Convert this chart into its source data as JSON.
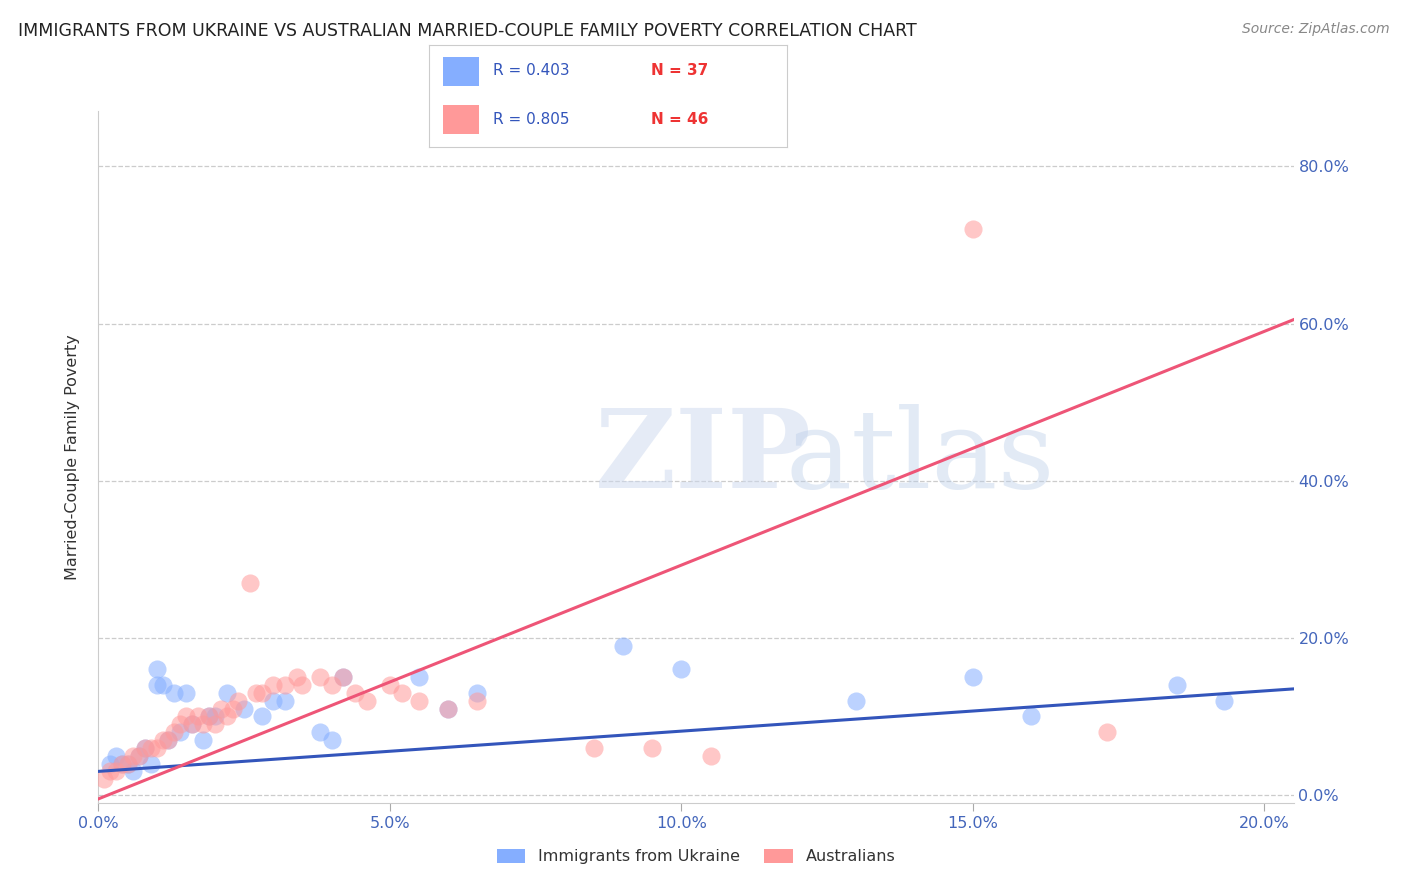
{
  "title": "IMMIGRANTS FROM UKRAINE VS AUSTRALIAN MARRIED-COUPLE FAMILY POVERTY CORRELATION CHART",
  "source": "Source: ZipAtlas.com",
  "ylabel": "Married-Couple Family Poverty",
  "xlim": [
    0.0,
    0.205
  ],
  "ylim": [
    -0.01,
    0.87
  ],
  "xticks": [
    0.0,
    0.05,
    0.1,
    0.15,
    0.2
  ],
  "xtick_labels": [
    "0.0%",
    "5.0%",
    "10.0%",
    "15.0%",
    "20.0%"
  ],
  "yticks": [
    0.0,
    0.2,
    0.4,
    0.6,
    0.8
  ],
  "ytick_labels": [
    "0.0%",
    "20.0%",
    "40.0%",
    "60.0%",
    "80.0%"
  ],
  "legend_r1": "R = 0.403",
  "legend_n1": "N = 37",
  "legend_r2": "R = 0.805",
  "legend_n2": "N = 46",
  "color_blue": "#85AEFF",
  "color_pink": "#FF9999",
  "color_blue_line": "#3355BB",
  "color_pink_line": "#EE5577",
  "color_axis": "#4466BB",
  "watermark_zip": "ZIP",
  "watermark_atlas": "atlas",
  "ukraine_x": [
    0.002,
    0.003,
    0.004,
    0.005,
    0.006,
    0.007,
    0.008,
    0.009,
    0.01,
    0.01,
    0.011,
    0.012,
    0.013,
    0.014,
    0.015,
    0.016,
    0.018,
    0.019,
    0.02,
    0.022,
    0.025,
    0.028,
    0.03,
    0.032,
    0.038,
    0.04,
    0.042,
    0.055,
    0.06,
    0.065,
    0.09,
    0.1,
    0.13,
    0.15,
    0.16,
    0.185,
    0.193
  ],
  "ukraine_y": [
    0.04,
    0.05,
    0.04,
    0.04,
    0.03,
    0.05,
    0.06,
    0.04,
    0.14,
    0.16,
    0.14,
    0.07,
    0.13,
    0.08,
    0.13,
    0.09,
    0.07,
    0.1,
    0.1,
    0.13,
    0.11,
    0.1,
    0.12,
    0.12,
    0.08,
    0.07,
    0.15,
    0.15,
    0.11,
    0.13,
    0.19,
    0.16,
    0.12,
    0.15,
    0.1,
    0.14,
    0.12
  ],
  "australia_x": [
    0.001,
    0.002,
    0.003,
    0.004,
    0.005,
    0.006,
    0.007,
    0.008,
    0.009,
    0.01,
    0.011,
    0.012,
    0.013,
    0.014,
    0.015,
    0.016,
    0.017,
    0.018,
    0.019,
    0.02,
    0.021,
    0.022,
    0.023,
    0.024,
    0.026,
    0.027,
    0.028,
    0.03,
    0.032,
    0.034,
    0.035,
    0.038,
    0.04,
    0.042,
    0.044,
    0.046,
    0.05,
    0.052,
    0.055,
    0.06,
    0.065,
    0.085,
    0.095,
    0.105,
    0.15,
    0.173
  ],
  "australia_y": [
    0.02,
    0.03,
    0.03,
    0.04,
    0.04,
    0.05,
    0.05,
    0.06,
    0.06,
    0.06,
    0.07,
    0.07,
    0.08,
    0.09,
    0.1,
    0.09,
    0.1,
    0.09,
    0.1,
    0.09,
    0.11,
    0.1,
    0.11,
    0.12,
    0.27,
    0.13,
    0.13,
    0.14,
    0.14,
    0.15,
    0.14,
    0.15,
    0.14,
    0.15,
    0.13,
    0.12,
    0.14,
    0.13,
    0.12,
    0.11,
    0.12,
    0.06,
    0.06,
    0.05,
    0.72,
    0.08
  ]
}
